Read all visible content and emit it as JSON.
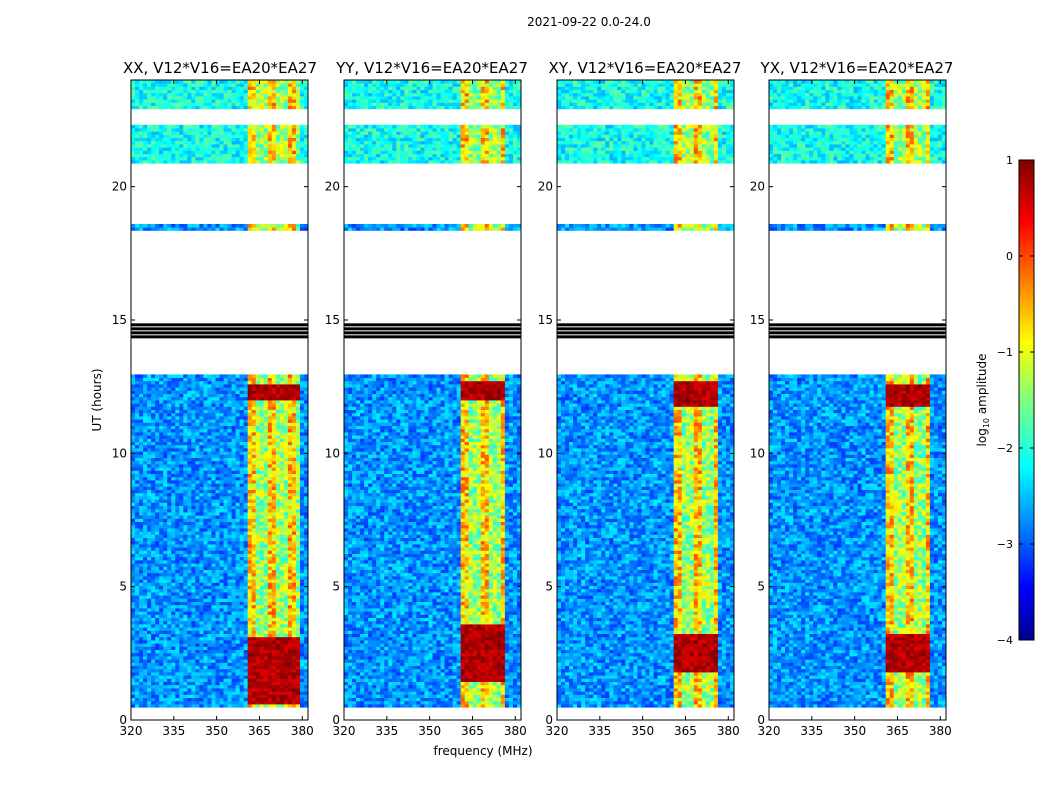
{
  "chart_data": {
    "type": "heatmap",
    "suptitle": "2021-09-22 0.0-24.0",
    "xlabel": "frequency (MHz)",
    "ylabel": "UT (hours)",
    "xlim": [
      320,
      382
    ],
    "ylim": [
      0,
      24
    ],
    "xticks": [
      320,
      335,
      350,
      365,
      380
    ],
    "yticks": [
      0,
      5,
      10,
      15,
      20
    ],
    "panels": [
      {
        "title": "XX, V12*V16=EA20*EA27",
        "rfi_band_mhz": [
          360,
          378
        ],
        "strong_hours": [
          [
            0.6,
            3.1
          ],
          [
            12.0,
            12.6
          ]
        ]
      },
      {
        "title": "YY, V12*V16=EA20*EA27",
        "rfi_band_mhz": [
          360,
          376
        ],
        "strong_hours": [
          [
            1.5,
            3.6
          ],
          [
            12.0,
            12.7
          ]
        ]
      },
      {
        "title": "XY, V12*V16=EA20*EA27",
        "rfi_band_mhz": [
          360,
          376
        ],
        "strong_hours": [
          [
            1.8,
            3.3
          ],
          [
            11.8,
            12.7
          ]
        ]
      },
      {
        "title": "YX, V12*V16=EA20*EA27",
        "rfi_band_mhz": [
          360,
          376
        ],
        "strong_hours": [
          [
            1.8,
            3.2
          ],
          [
            11.8,
            12.6
          ]
        ]
      }
    ],
    "data_present_hours": [
      [
        0.5,
        12.9
      ],
      [
        18.3,
        18.6
      ],
      [
        20.9,
        22.3
      ],
      [
        22.9,
        24.0
      ]
    ],
    "flagged_black_hours": [
      14.35,
      14.5,
      14.65,
      14.8
    ],
    "colorbar": {
      "label": "log",
      "label_sub": "10",
      "label_tail": " amplitude",
      "range": [
        -4,
        1
      ],
      "ticks": [
        "1",
        "0",
        "−1",
        "−2",
        "−3",
        "−4"
      ],
      "tick_values": [
        1,
        0,
        -1,
        -2,
        -3,
        -4
      ]
    }
  }
}
